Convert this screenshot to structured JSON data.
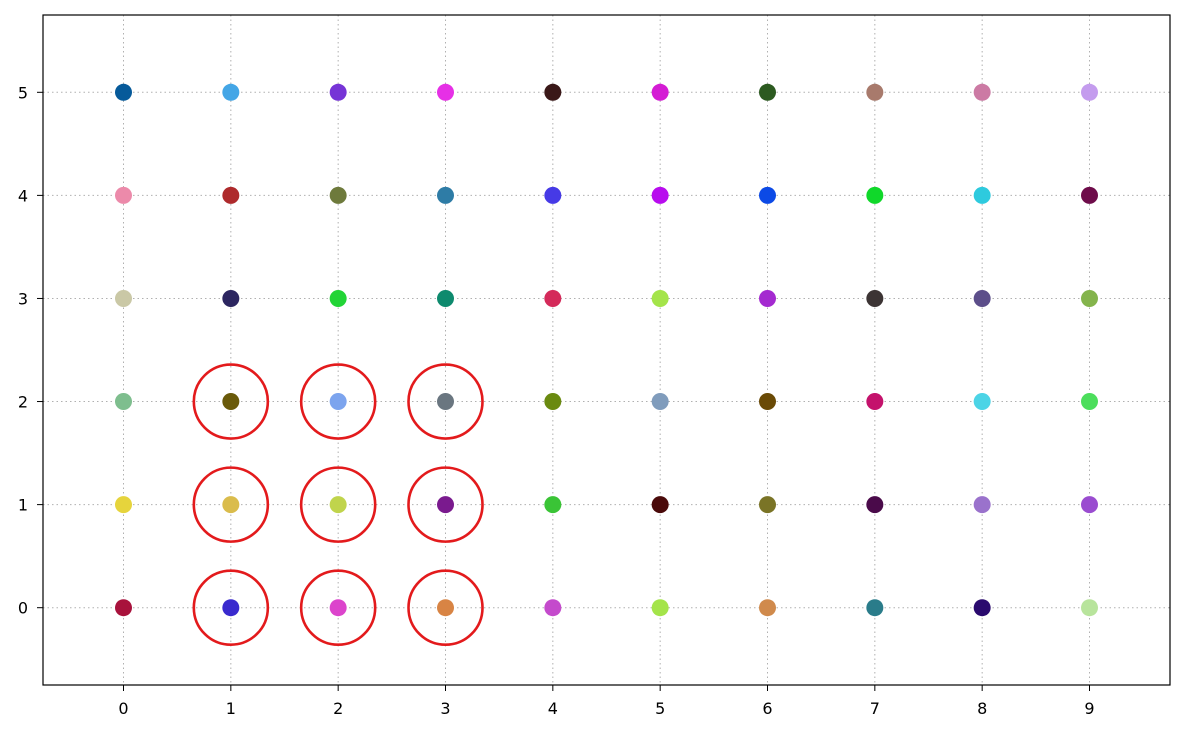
{
  "chart_data": {
    "type": "scatter",
    "title": "",
    "xlabel": "",
    "ylabel": "",
    "xlim": [
      -0.75,
      9.75
    ],
    "ylim": [
      -0.75,
      5.75
    ],
    "x_ticks": [
      0,
      1,
      2,
      3,
      4,
      5,
      6,
      7,
      8,
      9
    ],
    "y_ticks": [
      0,
      1,
      2,
      3,
      4,
      5
    ],
    "grid": true,
    "legend": "none",
    "highlight_color": "#e31a1c",
    "points": [
      {
        "x": 0,
        "y": 5,
        "color": "#065a9a"
      },
      {
        "x": 1,
        "y": 5,
        "color": "#44a6e6"
      },
      {
        "x": 2,
        "y": 5,
        "color": "#7634d6"
      },
      {
        "x": 3,
        "y": 5,
        "color": "#e630e6"
      },
      {
        "x": 4,
        "y": 5,
        "color": "#3a1818"
      },
      {
        "x": 5,
        "y": 5,
        "color": "#d41cd4"
      },
      {
        "x": 6,
        "y": 5,
        "color": "#2c5a20"
      },
      {
        "x": 7,
        "y": 5,
        "color": "#a87a6c"
      },
      {
        "x": 8,
        "y": 5,
        "color": "#cc7aa4"
      },
      {
        "x": 9,
        "y": 5,
        "color": "#c49cee"
      },
      {
        "x": 0,
        "y": 4,
        "color": "#ec8aaa"
      },
      {
        "x": 1,
        "y": 4,
        "color": "#ae2a2c"
      },
      {
        "x": 2,
        "y": 4,
        "color": "#6e7a3c"
      },
      {
        "x": 3,
        "y": 4,
        "color": "#2e7ca6"
      },
      {
        "x": 4,
        "y": 4,
        "color": "#463ae6"
      },
      {
        "x": 5,
        "y": 4,
        "color": "#b80cee"
      },
      {
        "x": 6,
        "y": 4,
        "color": "#0c4ae6"
      },
      {
        "x": 7,
        "y": 4,
        "color": "#10d82a"
      },
      {
        "x": 8,
        "y": 4,
        "color": "#2ecade"
      },
      {
        "x": 9,
        "y": 4,
        "color": "#6e0c4a"
      },
      {
        "x": 0,
        "y": 3,
        "color": "#cac8a6"
      },
      {
        "x": 1,
        "y": 3,
        "color": "#2c2660"
      },
      {
        "x": 2,
        "y": 3,
        "color": "#22d436"
      },
      {
        "x": 3,
        "y": 3,
        "color": "#0e8a6e"
      },
      {
        "x": 4,
        "y": 3,
        "color": "#d42a5a"
      },
      {
        "x": 5,
        "y": 3,
        "color": "#a4e44a"
      },
      {
        "x": 6,
        "y": 3,
        "color": "#a42ad0"
      },
      {
        "x": 7,
        "y": 3,
        "color": "#3c3434"
      },
      {
        "x": 8,
        "y": 3,
        "color": "#5c4e8a"
      },
      {
        "x": 9,
        "y": 3,
        "color": "#84b44c"
      },
      {
        "x": 0,
        "y": 2,
        "color": "#7ebe8e"
      },
      {
        "x": 1,
        "y": 2,
        "color": "#6a5a0a"
      },
      {
        "x": 2,
        "y": 2,
        "color": "#7ca4ee"
      },
      {
        "x": 3,
        "y": 2,
        "color": "#6a7680"
      },
      {
        "x": 4,
        "y": 2,
        "color": "#6a8a10"
      },
      {
        "x": 5,
        "y": 2,
        "color": "#809cbc"
      },
      {
        "x": 6,
        "y": 2,
        "color": "#6a4a06"
      },
      {
        "x": 7,
        "y": 2,
        "color": "#c4126c"
      },
      {
        "x": 8,
        "y": 2,
        "color": "#4cd4e6"
      },
      {
        "x": 9,
        "y": 2,
        "color": "#4cde5c"
      },
      {
        "x": 0,
        "y": 1,
        "color": "#e6d43c"
      },
      {
        "x": 1,
        "y": 1,
        "color": "#dabc4c"
      },
      {
        "x": 2,
        "y": 1,
        "color": "#c0d44c"
      },
      {
        "x": 3,
        "y": 1,
        "color": "#7a1a8e"
      },
      {
        "x": 4,
        "y": 1,
        "color": "#3ac436"
      },
      {
        "x": 5,
        "y": 1,
        "color": "#4a0a0a"
      },
      {
        "x": 6,
        "y": 1,
        "color": "#7a7426"
      },
      {
        "x": 7,
        "y": 1,
        "color": "#4a0a4a"
      },
      {
        "x": 8,
        "y": 1,
        "color": "#9a72cc"
      },
      {
        "x": 9,
        "y": 1,
        "color": "#9a4cd0"
      },
      {
        "x": 0,
        "y": 0,
        "color": "#a8123c"
      },
      {
        "x": 1,
        "y": 0,
        "color": "#3a2ace"
      },
      {
        "x": 2,
        "y": 0,
        "color": "#dc44cc"
      },
      {
        "x": 3,
        "y": 0,
        "color": "#d88444"
      },
      {
        "x": 4,
        "y": 0,
        "color": "#c44acc"
      },
      {
        "x": 5,
        "y": 0,
        "color": "#a4e44a"
      },
      {
        "x": 6,
        "y": 0,
        "color": "#d08a4c"
      },
      {
        "x": 7,
        "y": 0,
        "color": "#2a7c8a"
      },
      {
        "x": 8,
        "y": 0,
        "color": "#2a0a6e"
      },
      {
        "x": 9,
        "y": 0,
        "color": "#b8e49c"
      }
    ],
    "highlighted": [
      {
        "x": 1,
        "y": 2
      },
      {
        "x": 2,
        "y": 2
      },
      {
        "x": 3,
        "y": 2
      },
      {
        "x": 1,
        "y": 1
      },
      {
        "x": 2,
        "y": 1
      },
      {
        "x": 3,
        "y": 1
      },
      {
        "x": 1,
        "y": 0
      },
      {
        "x": 2,
        "y": 0
      },
      {
        "x": 3,
        "y": 0
      }
    ]
  }
}
